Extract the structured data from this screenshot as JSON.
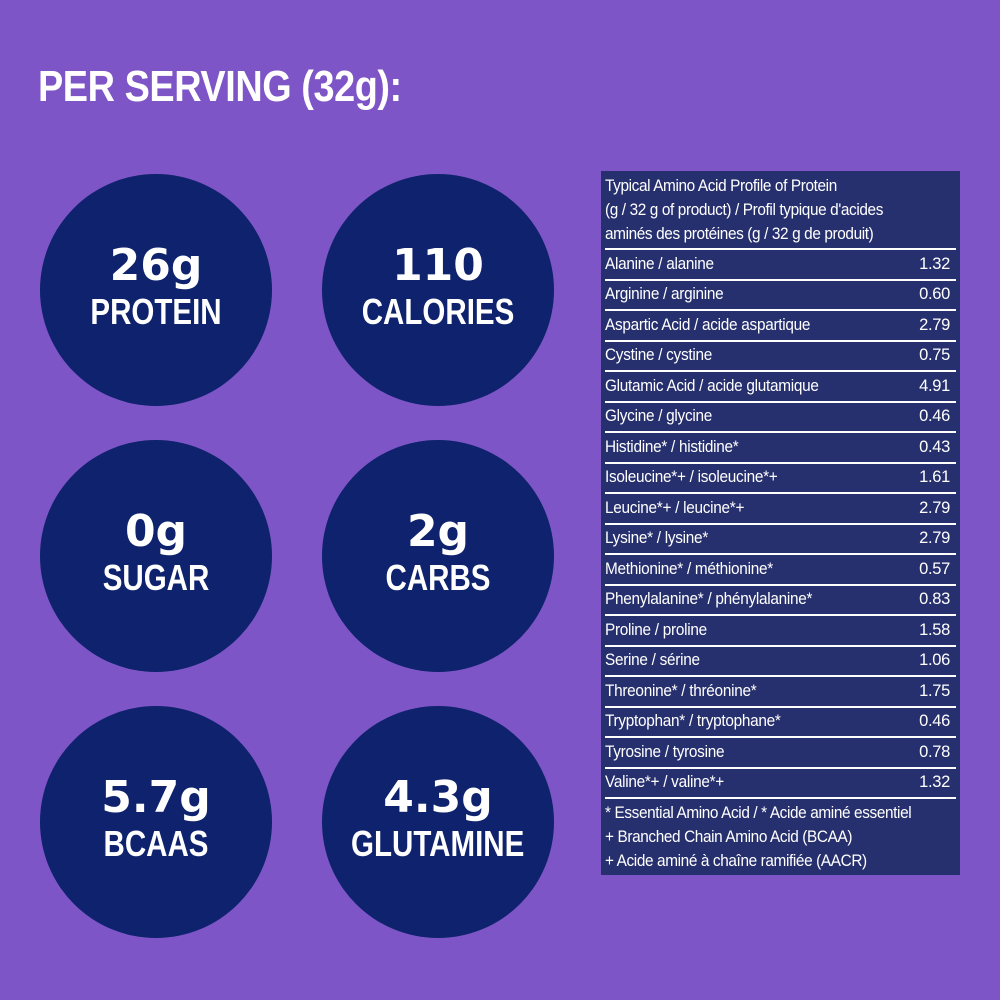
{
  "headline": "PER SERVING (32g):",
  "colors": {
    "background": "#7e55c6",
    "circle": "#0e226d",
    "table_bg": "#27306e",
    "text": "#ffffff"
  },
  "stats": [
    {
      "value": "26g",
      "label": "PROTEIN"
    },
    {
      "value": "110",
      "label": "CALORIES"
    },
    {
      "value": "0g",
      "label": "SUGAR"
    },
    {
      "value": "2g",
      "label": "CARBS"
    },
    {
      "value": "5.7g",
      "label": "BCAAS"
    },
    {
      "value": "4.3g",
      "label": "GLUTAMINE"
    }
  ],
  "amino_table": {
    "title_lines": [
      "Typical Amino Acid Profile of Protein",
      "(g / 32 g of product) / Profil typique d'acides",
      "aminés des protéines (g / 32 g de produit)"
    ],
    "rows": [
      {
        "name": "Alanine / alanine",
        "value": "1.32"
      },
      {
        "name": "Arginine / arginine",
        "value": "0.60"
      },
      {
        "name": "Aspartic Acid / acide aspartique",
        "value": "2.79"
      },
      {
        "name": "Cystine / cystine",
        "value": "0.75"
      },
      {
        "name": "Glutamic Acid / acide glutamique",
        "value": "4.91"
      },
      {
        "name": "Glycine / glycine",
        "value": "0.46"
      },
      {
        "name": "Histidine* / histidine*",
        "value": "0.43"
      },
      {
        "name": "Isoleucine*+ / isoleucine*+",
        "value": "1.61"
      },
      {
        "name": "Leucine*+ / leucine*+",
        "value": "2.79"
      },
      {
        "name": "Lysine* / lysine*",
        "value": "2.79"
      },
      {
        "name": "Methionine* / méthionine*",
        "value": "0.57"
      },
      {
        "name": "Phenylalanine* / phénylalanine*",
        "value": "0.83"
      },
      {
        "name": "Proline / proline",
        "value": "1.58"
      },
      {
        "name": "Serine / sérine",
        "value": "1.06"
      },
      {
        "name": "Threonine* / thréonine*",
        "value": "1.75"
      },
      {
        "name": "Tryptophan* / tryptophane*",
        "value": "0.46"
      },
      {
        "name": "Tyrosine / tyrosine",
        "value": "0.78"
      },
      {
        "name": "Valine*+ / valine*+",
        "value": "1.32"
      }
    ],
    "notes": [
      "* Essential Amino Acid / * Acide aminé essentiel",
      "+ Branched Chain Amino Acid (BCAA)",
      "+ Acide aminé à chaîne ramifiée (AACR)"
    ]
  }
}
